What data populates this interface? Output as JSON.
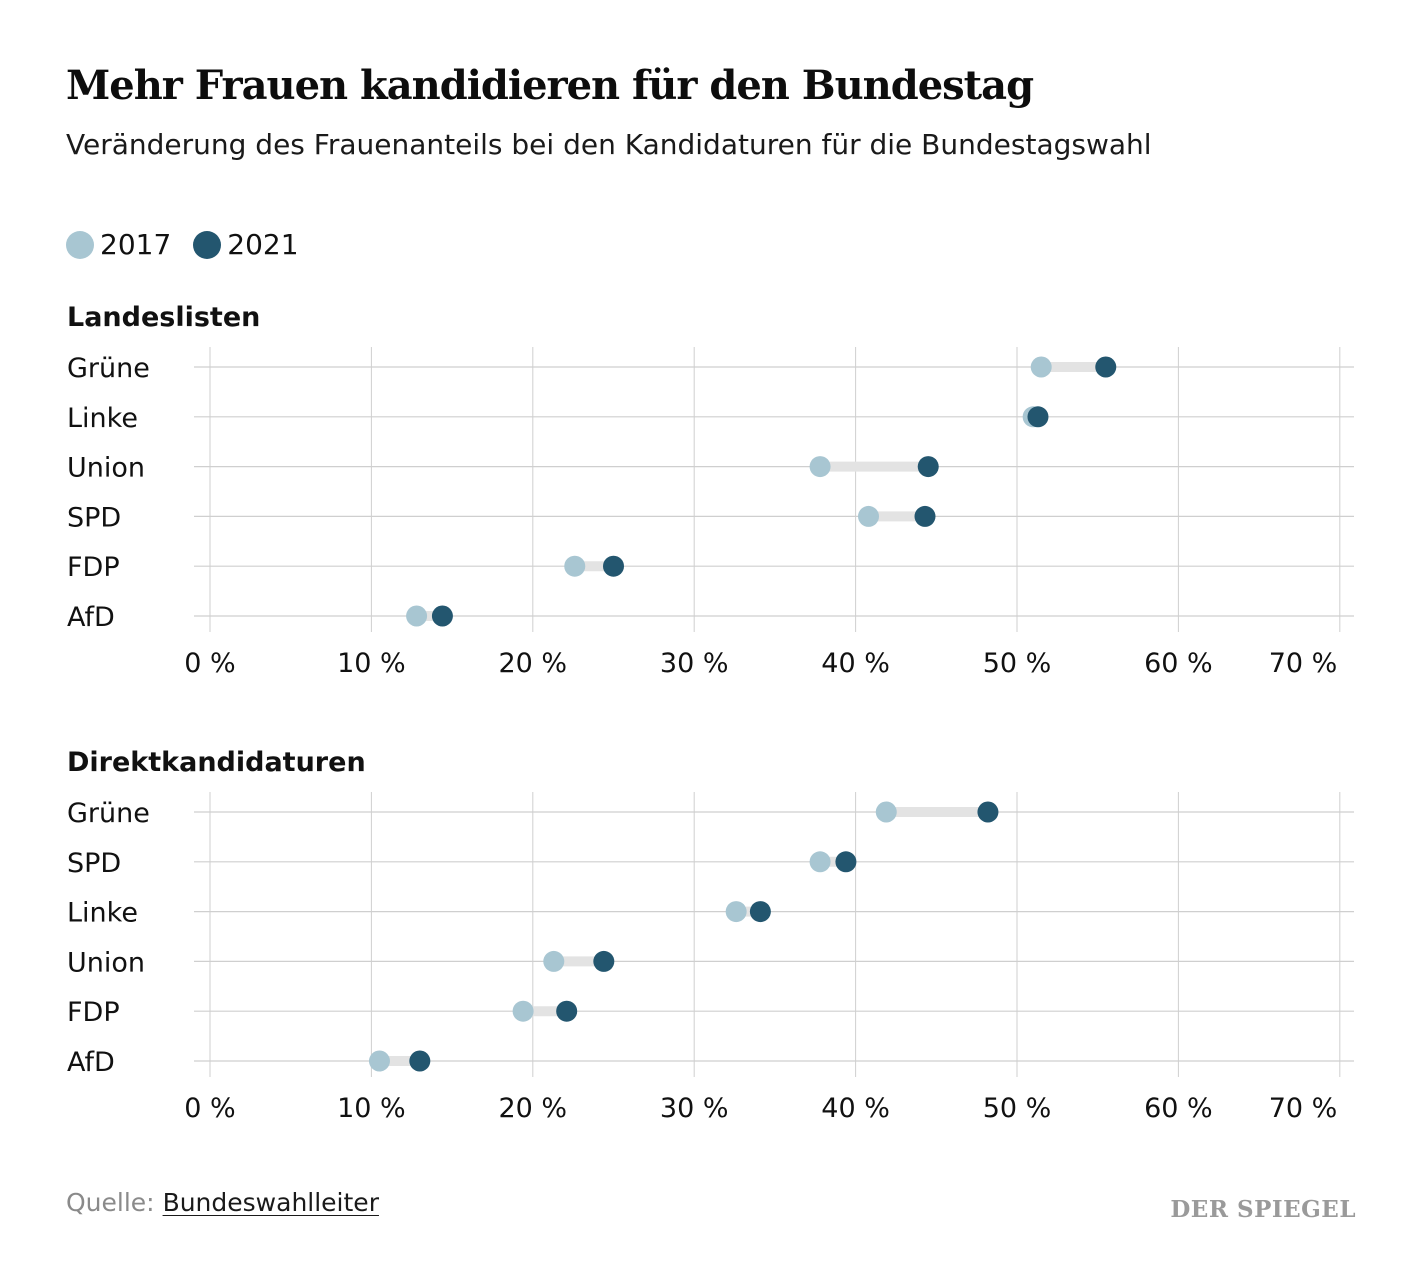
{
  "header": {
    "title": "Mehr Frauen kandidieren für den Bundestag",
    "subtitle": "Veränderung des Frauenanteils bei den Kandidaturen für die Bundestagswahl"
  },
  "legend": {
    "items": [
      {
        "label": "2017",
        "color": "#a8c6d2"
      },
      {
        "label": "2021",
        "color": "#23566f"
      }
    ]
  },
  "colors": {
    "v2017": "#a8c6d2",
    "v2021": "#23566f",
    "connector": "#e3e3e3",
    "grid": "#cfcfcf"
  },
  "chart_data": [
    {
      "type": "dumbbell",
      "title": "Landeslisten",
      "series_names": [
        "2017",
        "2021"
      ],
      "categories": [
        "Grüne",
        "Linke",
        "Union",
        "SPD",
        "FDP",
        "AfD"
      ],
      "v2017": [
        51.5,
        51.0,
        37.8,
        40.8,
        22.6,
        12.8
      ],
      "v2021": [
        55.5,
        51.3,
        44.5,
        44.3,
        25.0,
        14.4
      ],
      "xlim": [
        0,
        70
      ],
      "ticks": [
        0,
        10,
        20,
        30,
        40,
        50,
        60,
        70
      ],
      "tick_labels": [
        "0 %",
        "10 %",
        "20 %",
        "30 %",
        "40 %",
        "50 %",
        "60 %",
        "70 %"
      ]
    },
    {
      "type": "dumbbell",
      "title": "Direktkandidaturen",
      "series_names": [
        "2017",
        "2021"
      ],
      "categories": [
        "Grüne",
        "SPD",
        "Linke",
        "Union",
        "FDP",
        "AfD"
      ],
      "v2017": [
        41.9,
        37.8,
        32.6,
        21.3,
        19.4,
        10.5
      ],
      "v2021": [
        48.2,
        39.4,
        34.1,
        24.4,
        22.1,
        13.0
      ],
      "xlim": [
        0,
        70
      ],
      "ticks": [
        0,
        10,
        20,
        30,
        40,
        50,
        60,
        70
      ],
      "tick_labels": [
        "0 %",
        "10 %",
        "20 %",
        "30 %",
        "40 %",
        "50 %",
        "60 %",
        "70 %"
      ]
    }
  ],
  "footer": {
    "source_prefix": "Quelle:",
    "source_link": "Bundeswahlleiter",
    "brand": "DER SPIEGEL"
  }
}
